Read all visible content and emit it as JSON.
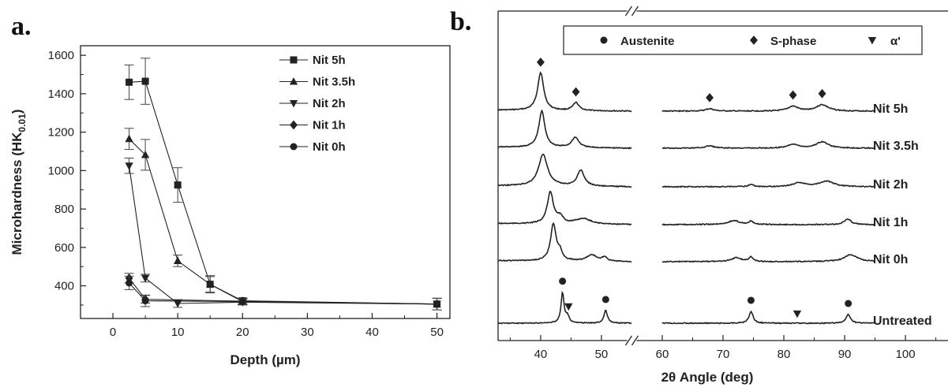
{
  "chart_data": [
    {
      "panel": "a.",
      "type": "line",
      "xlabel": "Depth (µm)",
      "ylabel": "Microhardness (HK",
      "ylabel_sub": "0.01",
      "ylabel_end": ")",
      "xlim": [
        -5,
        52
      ],
      "ylim": [
        230,
        1650
      ],
      "xticks": [
        0,
        10,
        20,
        30,
        40,
        50
      ],
      "yticks": [
        400,
        600,
        800,
        1000,
        1200,
        1400,
        1600
      ],
      "legend_position": "top-right",
      "series": [
        {
          "name": "Nit 5h",
          "marker": "square",
          "x": [
            2.5,
            5,
            10,
            15,
            20,
            50
          ],
          "y": [
            1460,
            1465,
            925,
            408,
            322,
            305
          ],
          "err": [
            90,
            120,
            90,
            45,
            15,
            30
          ]
        },
        {
          "name": "Nit 3.5h",
          "marker": "triangle-up",
          "x": [
            2.5,
            5,
            10,
            15,
            20,
            50
          ],
          "y": [
            1165,
            1082,
            530,
            408,
            318,
            305
          ],
          "err": [
            55,
            80,
            30,
            40,
            15,
            30
          ]
        },
        {
          "name": "Nit 2h",
          "marker": "triangle-down",
          "x": [
            2.5,
            5,
            10,
            20,
            50
          ],
          "y": [
            1025,
            440,
            308,
            315,
            305
          ],
          "err": [
            40,
            20,
            20,
            15,
            30
          ]
        },
        {
          "name": "Nit 1h",
          "marker": "diamond",
          "x": [
            2.5,
            5,
            20,
            50
          ],
          "y": [
            440,
            330,
            320,
            305
          ],
          "err": [
            25,
            20,
            15,
            30
          ]
        },
        {
          "name": "Nit 0h",
          "marker": "circle",
          "x": [
            2.5,
            5,
            20,
            50
          ],
          "y": [
            415,
            322,
            318,
            305
          ],
          "err": [
            35,
            30,
            15,
            30
          ]
        }
      ]
    },
    {
      "panel": "b.",
      "type": "line",
      "xlabel": "2θ  Angle (deg)",
      "xticks": [
        40,
        50,
        60,
        70,
        80,
        90,
        100
      ],
      "xlim": [
        33,
        107
      ],
      "axis_break": [
        55,
        60
      ],
      "legend": [
        {
          "name": "Austenite",
          "marker": "circle"
        },
        {
          "name": "S-phase",
          "marker": "diamond"
        },
        {
          "name": "α'",
          "marker": "triangle-down"
        }
      ],
      "legend_position": "top",
      "traces": [
        {
          "name": "Nit 5h",
          "peaks": [
            [
              40.0,
              48,
              0.6
            ],
            [
              45.8,
              10,
              0.6
            ],
            [
              67.8,
              3,
              0.8
            ],
            [
              81.5,
              6,
              1.0
            ],
            [
              86.3,
              8,
              1.2
            ]
          ],
          "markers": [
            {
              "x": 40.0,
              "marker": "diamond"
            },
            {
              "x": 45.8,
              "marker": "diamond"
            },
            {
              "x": 67.8,
              "marker": "diamond"
            },
            {
              "x": 81.5,
              "marker": "diamond"
            },
            {
              "x": 86.3,
              "marker": "diamond"
            }
          ]
        },
        {
          "name": "Nit 3.5h",
          "peaks": [
            [
              40.2,
              46,
              0.6
            ],
            [
              45.7,
              13,
              0.7
            ],
            [
              67.8,
              3,
              0.8
            ],
            [
              81.5,
              5,
              1.0
            ],
            [
              86.3,
              8,
              1.2
            ]
          ],
          "markers": []
        },
        {
          "name": "Nit 2h",
          "peaks": [
            [
              40.4,
              40,
              0.9
            ],
            [
              46.6,
              20,
              0.7
            ],
            [
              74.6,
              3,
              0.5
            ],
            [
              82.5,
              5,
              1.2
            ],
            [
              87.0,
              7,
              1.5
            ]
          ],
          "markers": []
        },
        {
          "name": "Nit 1h",
          "peaks": [
            [
              41.6,
              40,
              0.6
            ],
            [
              43.2,
              8,
              0.6
            ],
            [
              47.0,
              7,
              1.5
            ],
            [
              71.8,
              5,
              1.2
            ],
            [
              74.6,
              4,
              0.4
            ],
            [
              90.5,
              7,
              0.7
            ]
          ],
          "markers": []
        },
        {
          "name": "Nit 0h",
          "peaks": [
            [
              42.1,
              47,
              0.55
            ],
            [
              43.2,
              10,
              0.4
            ],
            [
              48.4,
              8,
              1.0
            ],
            [
              50.5,
              5,
              0.5
            ],
            [
              72.2,
              5,
              1.0
            ],
            [
              74.6,
              6,
              0.4
            ],
            [
              91.0,
              9,
              1.3
            ]
          ],
          "markers": []
        },
        {
          "name": "Untreated",
          "peaks": [
            [
              43.6,
              38,
              0.3
            ],
            [
              44.4,
              8,
              0.35
            ],
            [
              50.7,
              16,
              0.35
            ],
            [
              74.6,
              15,
              0.4
            ],
            [
              90.6,
              11,
              0.45
            ]
          ],
          "markers": [
            {
              "x": 43.6,
              "marker": "circle"
            },
            {
              "x": 44.6,
              "marker": "triangle-down"
            },
            {
              "x": 50.7,
              "marker": "circle"
            },
            {
              "x": 74.6,
              "marker": "circle"
            },
            {
              "x": 82.2,
              "marker": "triangle-down"
            },
            {
              "x": 90.6,
              "marker": "circle"
            }
          ]
        }
      ]
    }
  ]
}
